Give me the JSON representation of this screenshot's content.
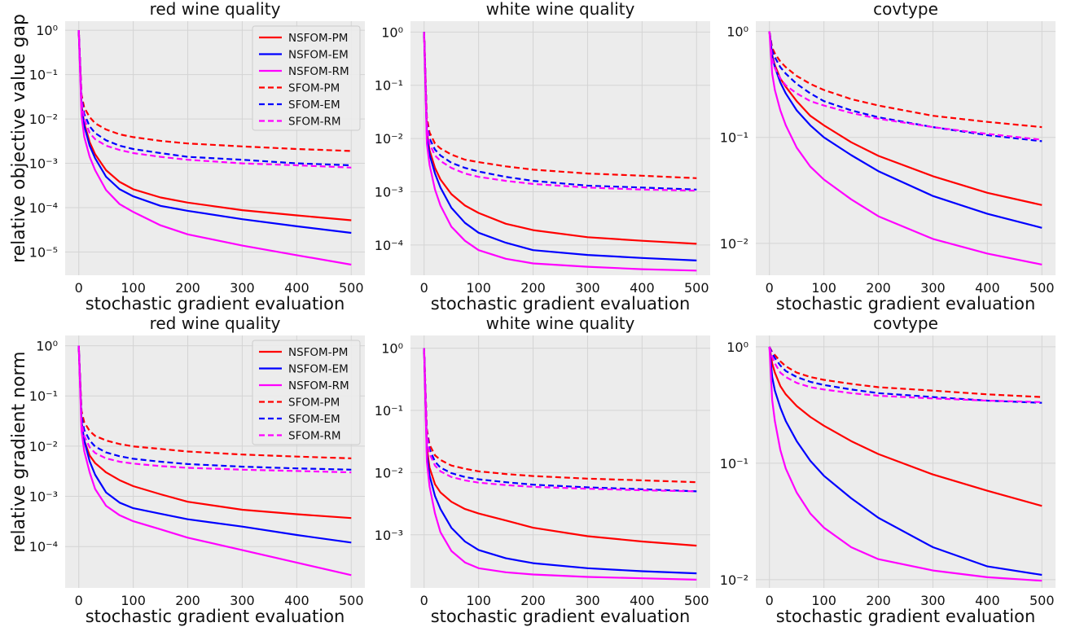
{
  "figure": {
    "row_ylabels": [
      "relative objective value gap",
      "relative gradient norm"
    ],
    "xlabel": "stochastic gradient evaluation",
    "x_ticks": [
      0,
      100,
      200,
      300,
      400,
      500
    ]
  },
  "series_styles": {
    "NSFOM-PM": {
      "color": "#ff0000",
      "dash": "solid"
    },
    "NSFOM-EM": {
      "color": "#0000ff",
      "dash": "solid"
    },
    "NSFOM-RM": {
      "color": "#ff00ff",
      "dash": "solid"
    },
    "SFOM-PM": {
      "color": "#ff0000",
      "dash": "dashed"
    },
    "SFOM-EM": {
      "color": "#0000ff",
      "dash": "dashed"
    },
    "SFOM-RM": {
      "color": "#ff00ff",
      "dash": "dashed"
    }
  },
  "chart_data": [
    {
      "type": "line",
      "title": "red wine quality",
      "ylabel": "relative objective value gap",
      "xlabel": "stochastic gradient evaluation",
      "y_scale": "log",
      "xlim": [
        -25,
        525
      ],
      "ylim": [
        3e-06,
        1.6
      ],
      "yticks": [
        1e-05,
        0.0001,
        0.001,
        0.01,
        0.1,
        1
      ],
      "grid": true,
      "legend": "top-right",
      "x": [
        0,
        5,
        10,
        20,
        30,
        50,
        75,
        100,
        150,
        200,
        300,
        400,
        500
      ],
      "series": [
        {
          "name": "NSFOM-PM",
          "values": [
            1,
            0.02,
            0.008,
            0.003,
            0.0016,
            0.0007,
            0.00038,
            0.00026,
            0.00017,
            0.00013,
            8.8e-05,
            6.7e-05,
            5.2e-05
          ]
        },
        {
          "name": "NSFOM-EM",
          "values": [
            1,
            0.018,
            0.007,
            0.0025,
            0.0013,
            0.0005,
            0.00026,
            0.00018,
            0.00011,
            8.5e-05,
            5.5e-05,
            3.8e-05,
            2.7e-05
          ]
        },
        {
          "name": "NSFOM-RM",
          "values": [
            1,
            0.012,
            0.004,
            0.0014,
            0.0007,
            0.00025,
            0.00012,
            8e-05,
            4e-05,
            2.5e-05,
            1.4e-05,
            8.5e-06,
            5.2e-06
          ]
        },
        {
          "name": "SFOM-PM",
          "values": [
            1,
            0.035,
            0.018,
            0.011,
            0.008,
            0.0058,
            0.0045,
            0.0039,
            0.0032,
            0.0028,
            0.0024,
            0.0021,
            0.0019
          ]
        },
        {
          "name": "SFOM-EM",
          "values": [
            1,
            0.03,
            0.013,
            0.0068,
            0.0048,
            0.0033,
            0.0025,
            0.0021,
            0.0017,
            0.0014,
            0.0012,
            0.001,
            0.0009
          ]
        },
        {
          "name": "SFOM-RM",
          "values": [
            1,
            0.025,
            0.01,
            0.0048,
            0.0035,
            0.0025,
            0.002,
            0.0017,
            0.0014,
            0.0012,
            0.001,
            0.0009,
            0.0008
          ]
        }
      ]
    },
    {
      "type": "line",
      "title": "white wine quality",
      "ylabel": "",
      "xlabel": "stochastic gradient evaluation",
      "y_scale": "log",
      "xlim": [
        -25,
        525
      ],
      "ylim": [
        2.7e-05,
        1.6
      ],
      "yticks": [
        0.0001,
        0.001,
        0.01,
        0.1,
        1
      ],
      "grid": true,
      "legend": "none",
      "x": [
        0,
        5,
        10,
        20,
        30,
        50,
        75,
        100,
        150,
        200,
        300,
        400,
        500
      ],
      "series": [
        {
          "name": "NSFOM-PM",
          "values": [
            1,
            0.013,
            0.006,
            0.0028,
            0.0017,
            0.0009,
            0.00055,
            0.0004,
            0.00025,
            0.00019,
            0.00014,
            0.00012,
            0.000105
          ]
        },
        {
          "name": "NSFOM-EM",
          "values": [
            1,
            0.011,
            0.005,
            0.0022,
            0.0012,
            0.0005,
            0.00026,
            0.00017,
            0.00011,
            8e-05,
            6.5e-05,
            5.7e-05,
            5.1e-05
          ]
        },
        {
          "name": "NSFOM-RM",
          "values": [
            1,
            0.008,
            0.0032,
            0.0011,
            0.00055,
            0.00022,
            0.00012,
            8e-05,
            5.5e-05,
            4.5e-05,
            3.9e-05,
            3.5e-05,
            3.3e-05
          ]
        },
        {
          "name": "SFOM-PM",
          "values": [
            1,
            0.025,
            0.013,
            0.008,
            0.0065,
            0.005,
            0.004,
            0.0036,
            0.003,
            0.0026,
            0.0022,
            0.002,
            0.0018
          ]
        },
        {
          "name": "SFOM-EM",
          "values": [
            1,
            0.02,
            0.01,
            0.0062,
            0.0048,
            0.0035,
            0.0028,
            0.0024,
            0.0019,
            0.0016,
            0.0013,
            0.0012,
            0.0011
          ]
        },
        {
          "name": "SFOM-RM",
          "values": [
            1,
            0.018,
            0.008,
            0.0048,
            0.0038,
            0.0028,
            0.0022,
            0.0019,
            0.0016,
            0.0014,
            0.0012,
            0.0011,
            0.00105
          ]
        }
      ]
    },
    {
      "type": "line",
      "title": "covtype",
      "ylabel": "",
      "xlabel": "stochastic gradient evaluation",
      "y_scale": "log",
      "xlim": [
        -25,
        525
      ],
      "ylim": [
        0.005,
        1.25
      ],
      "yticks": [
        0.01,
        0.1,
        1
      ],
      "grid": true,
      "legend": "none",
      "x": [
        0,
        5,
        10,
        20,
        30,
        50,
        75,
        100,
        150,
        200,
        300,
        400,
        500
      ],
      "series": [
        {
          "name": "NSFOM-PM",
          "values": [
            1,
            0.6,
            0.48,
            0.36,
            0.3,
            0.22,
            0.16,
            0.13,
            0.09,
            0.067,
            0.043,
            0.03,
            0.023
          ]
        },
        {
          "name": "NSFOM-EM",
          "values": [
            1,
            0.58,
            0.46,
            0.33,
            0.26,
            0.18,
            0.13,
            0.1,
            0.068,
            0.048,
            0.028,
            0.019,
            0.014
          ]
        },
        {
          "name": "NSFOM-RM",
          "values": [
            1,
            0.4,
            0.28,
            0.18,
            0.13,
            0.08,
            0.053,
            0.04,
            0.026,
            0.018,
            0.011,
            0.008,
            0.0063
          ]
        },
        {
          "name": "SFOM-PM",
          "values": [
            1,
            0.7,
            0.62,
            0.52,
            0.46,
            0.38,
            0.32,
            0.28,
            0.23,
            0.2,
            0.16,
            0.14,
            0.125
          ]
        },
        {
          "name": "SFOM-EM",
          "values": [
            1,
            0.66,
            0.57,
            0.46,
            0.4,
            0.32,
            0.26,
            0.22,
            0.18,
            0.155,
            0.125,
            0.105,
            0.092
          ]
        },
        {
          "name": "SFOM-RM",
          "values": [
            1,
            0.55,
            0.45,
            0.36,
            0.31,
            0.26,
            0.22,
            0.2,
            0.17,
            0.15,
            0.125,
            0.108,
            0.095
          ]
        }
      ]
    },
    {
      "type": "line",
      "title": "red wine quality",
      "ylabel": "relative gradient norm",
      "xlabel": "stochastic gradient evaluation",
      "y_scale": "log",
      "xlim": [
        -25,
        525
      ],
      "ylim": [
        1.5e-05,
        1.6
      ],
      "yticks": [
        0.0001,
        0.001,
        0.01,
        0.1,
        1
      ],
      "grid": true,
      "legend": "top-right",
      "x": [
        0,
        5,
        10,
        20,
        30,
        50,
        75,
        100,
        150,
        200,
        300,
        400,
        500
      ],
      "series": [
        {
          "name": "NSFOM-PM",
          "values": [
            1,
            0.03,
            0.013,
            0.0065,
            0.0046,
            0.003,
            0.0021,
            0.0016,
            0.0011,
            0.00078,
            0.00054,
            0.00044,
            0.00037
          ]
        },
        {
          "name": "NSFOM-EM",
          "values": [
            1,
            0.03,
            0.013,
            0.005,
            0.0027,
            0.0012,
            0.00075,
            0.00058,
            0.00045,
            0.00035,
            0.00025,
            0.00017,
            0.00012
          ]
        },
        {
          "name": "NSFOM-RM",
          "values": [
            1,
            0.02,
            0.008,
            0.003,
            0.0014,
            0.00065,
            0.00042,
            0.00032,
            0.00022,
            0.00015,
            8.5e-05,
            4.8e-05,
            2.7e-05
          ]
        },
        {
          "name": "SFOM-PM",
          "values": [
            1,
            0.05,
            0.03,
            0.02,
            0.016,
            0.013,
            0.011,
            0.0099,
            0.0088,
            0.0078,
            0.0068,
            0.0062,
            0.0057
          ]
        },
        {
          "name": "SFOM-EM",
          "values": [
            1,
            0.04,
            0.021,
            0.013,
            0.0098,
            0.0075,
            0.0063,
            0.0056,
            0.0049,
            0.0044,
            0.0039,
            0.0036,
            0.0034
          ]
        },
        {
          "name": "SFOM-RM",
          "values": [
            1,
            0.03,
            0.016,
            0.0095,
            0.0073,
            0.0057,
            0.0049,
            0.0045,
            0.004,
            0.0037,
            0.0034,
            0.0032,
            0.003
          ]
        }
      ]
    },
    {
      "type": "line",
      "title": "white wine quality",
      "ylabel": "",
      "xlabel": "stochastic gradient evaluation",
      "y_scale": "log",
      "xlim": [
        -25,
        525
      ],
      "ylim": [
        0.00014,
        1.6
      ],
      "yticks": [
        0.001,
        0.01,
        0.1,
        1
      ],
      "grid": true,
      "legend": "none",
      "x": [
        0,
        5,
        10,
        20,
        30,
        50,
        75,
        100,
        150,
        200,
        300,
        400,
        500
      ],
      "series": [
        {
          "name": "NSFOM-PM",
          "values": [
            1,
            0.025,
            0.012,
            0.0065,
            0.0048,
            0.0034,
            0.0026,
            0.0022,
            0.0017,
            0.0013,
            0.00095,
            0.00078,
            0.00067
          ]
        },
        {
          "name": "NSFOM-EM",
          "values": [
            1,
            0.02,
            0.009,
            0.0042,
            0.0026,
            0.0013,
            0.00078,
            0.00057,
            0.00042,
            0.00035,
            0.00029,
            0.00026,
            0.00024
          ]
        },
        {
          "name": "NSFOM-RM",
          "values": [
            1,
            0.015,
            0.006,
            0.0022,
            0.0011,
            0.00055,
            0.00036,
            0.00029,
            0.00025,
            0.00023,
            0.00021,
            0.0002,
            0.00019
          ]
        },
        {
          "name": "SFOM-PM",
          "values": [
            1,
            0.05,
            0.028,
            0.019,
            0.016,
            0.013,
            0.0115,
            0.0105,
            0.0095,
            0.0088,
            0.008,
            0.0075,
            0.007
          ]
        },
        {
          "name": "SFOM-EM",
          "values": [
            1,
            0.045,
            0.024,
            0.015,
            0.012,
            0.0098,
            0.0085,
            0.0078,
            0.007,
            0.0064,
            0.0058,
            0.0054,
            0.005
          ]
        },
        {
          "name": "SFOM-RM",
          "values": [
            1,
            0.04,
            0.02,
            0.013,
            0.0105,
            0.0085,
            0.0075,
            0.0069,
            0.0063,
            0.0059,
            0.0055,
            0.0052,
            0.005
          ]
        }
      ]
    },
    {
      "type": "line",
      "title": "covtype",
      "ylabel": "",
      "xlabel": "stochastic gradient evaluation",
      "y_scale": "log",
      "xlim": [
        -25,
        525
      ],
      "ylim": [
        0.0085,
        1.25
      ],
      "yticks": [
        0.01,
        0.1,
        1
      ],
      "grid": true,
      "legend": "none",
      "x": [
        0,
        5,
        10,
        20,
        30,
        50,
        75,
        100,
        150,
        200,
        300,
        400,
        500
      ],
      "series": [
        {
          "name": "NSFOM-PM",
          "values": [
            1,
            0.72,
            0.6,
            0.46,
            0.39,
            0.31,
            0.25,
            0.21,
            0.155,
            0.12,
            0.08,
            0.058,
            0.043
          ]
        },
        {
          "name": "NSFOM-EM",
          "values": [
            1,
            0.55,
            0.42,
            0.3,
            0.23,
            0.155,
            0.105,
            0.078,
            0.05,
            0.034,
            0.019,
            0.013,
            0.011
          ]
        },
        {
          "name": "NSFOM-RM",
          "values": [
            1,
            0.35,
            0.23,
            0.13,
            0.09,
            0.056,
            0.037,
            0.028,
            0.019,
            0.015,
            0.012,
            0.0105,
            0.0098
          ]
        },
        {
          "name": "SFOM-PM",
          "values": [
            1,
            0.9,
            0.85,
            0.75,
            0.68,
            0.6,
            0.55,
            0.52,
            0.48,
            0.45,
            0.42,
            0.39,
            0.37
          ]
        },
        {
          "name": "SFOM-EM",
          "values": [
            1,
            0.88,
            0.8,
            0.69,
            0.62,
            0.55,
            0.5,
            0.47,
            0.43,
            0.4,
            0.37,
            0.345,
            0.33
          ]
        },
        {
          "name": "SFOM-RM",
          "values": [
            1,
            0.82,
            0.72,
            0.6,
            0.55,
            0.49,
            0.45,
            0.43,
            0.4,
            0.38,
            0.36,
            0.345,
            0.335
          ]
        }
      ]
    }
  ]
}
